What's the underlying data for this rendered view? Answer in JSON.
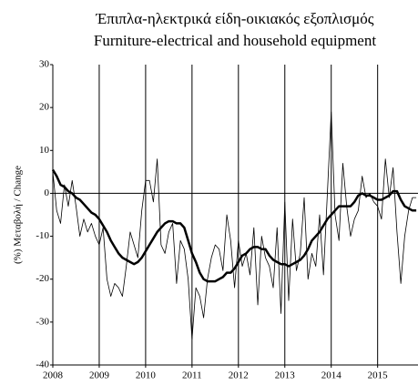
{
  "chart_data": {
    "type": "line",
    "title": "Έπιπλα-ηλεκτρικά είδη-οικιακός εξοπλισμός",
    "subtitle": "Furniture-electrical and household equipment",
    "y_label": "(%) Μεταβολή / Change",
    "x": [
      2008,
      2008.083,
      2008.167,
      2008.25,
      2008.333,
      2008.417,
      2008.5,
      2008.583,
      2008.667,
      2008.75,
      2008.833,
      2008.917,
      2009,
      2009.083,
      2009.167,
      2009.25,
      2009.333,
      2009.417,
      2009.5,
      2009.583,
      2009.667,
      2009.75,
      2009.833,
      2009.917,
      2010,
      2010.083,
      2010.167,
      2010.25,
      2010.333,
      2010.417,
      2010.5,
      2010.583,
      2010.667,
      2010.75,
      2010.833,
      2010.917,
      2011,
      2011.083,
      2011.167,
      2011.25,
      2011.333,
      2011.417,
      2011.5,
      2011.583,
      2011.667,
      2011.75,
      2011.833,
      2011.917,
      2012,
      2012.083,
      2012.167,
      2012.25,
      2012.333,
      2012.417,
      2012.5,
      2012.583,
      2012.667,
      2012.75,
      2012.833,
      2012.917,
      2013,
      2013.083,
      2013.167,
      2013.25,
      2013.333,
      2013.417,
      2013.5,
      2013.583,
      2013.667,
      2013.75,
      2013.833,
      2013.917,
      2014,
      2014.083,
      2014.167,
      2014.25,
      2014.333,
      2014.417,
      2014.5,
      2014.583,
      2014.667,
      2014.75,
      2014.833,
      2014.917,
      2015,
      2015.083,
      2015.167,
      2015.25,
      2015.333,
      2015.417,
      2015.5,
      2015.583,
      2015.667,
      2015.75,
      2015.833
    ],
    "series": [
      {
        "color": "#000000",
        "width": 0.8,
        "values": [
          5,
          -4,
          -7,
          2,
          -3,
          3,
          -3,
          -10,
          -6,
          -9,
          -7,
          -10,
          -12,
          -8,
          -20,
          -24,
          -21,
          -22,
          -24,
          -17,
          -9,
          -12,
          -15,
          -4,
          3,
          3,
          -2,
          8,
          -12,
          -14,
          -9,
          -7,
          -21,
          -11,
          -13,
          -20,
          -34,
          -22,
          -24,
          -29,
          -20,
          -15,
          -12,
          -13,
          -18,
          -5,
          -11,
          -22,
          -11,
          -17,
          -14,
          -19,
          -8,
          -26,
          -10,
          -15,
          -17,
          -22,
          -8,
          -28,
          -2,
          -25,
          -6,
          -18,
          -14,
          -1,
          -20,
          -14,
          -17,
          -5,
          -19,
          0,
          19,
          -5,
          -11,
          7,
          -3,
          -10,
          -6,
          -4,
          4,
          -1,
          0,
          -2,
          -3,
          -6,
          8,
          -1,
          6,
          -9,
          -21,
          -10,
          -4,
          -1,
          -1
        ]
      },
      {
        "color": "#000000",
        "width": 2.5,
        "values": [
          5.5,
          4,
          2,
          1.5,
          0.5,
          0,
          -1,
          -1.5,
          -2.5,
          -3.5,
          -4.5,
          -5,
          -6,
          -7.5,
          -9,
          -11,
          -12.5,
          -14,
          -15,
          -15.5,
          -16,
          -16.5,
          -16,
          -15,
          -13.5,
          -12,
          -10.5,
          -9,
          -8,
          -7,
          -6.5,
          -6.5,
          -7,
          -7,
          -8,
          -11,
          -14,
          -16,
          -18.5,
          -20,
          -20.5,
          -20.5,
          -20.5,
          -20,
          -19.5,
          -18.5,
          -18.5,
          -17.5,
          -16,
          -14.5,
          -14,
          -13,
          -12.5,
          -12.5,
          -13,
          -13,
          -14.5,
          -15.5,
          -16,
          -16.5,
          -16.5,
          -17,
          -16.5,
          -16,
          -15.5,
          -14.5,
          -13,
          -11,
          -10,
          -9,
          -7.5,
          -6,
          -5,
          -4,
          -3,
          -3,
          -3,
          -3,
          -2,
          -0.5,
          0,
          -0.5,
          -0.5,
          -1,
          -1.5,
          -1.5,
          -1,
          -0.5,
          0.5,
          0.5,
          -1.5,
          -3,
          -3.5,
          -4,
          -4
        ]
      }
    ],
    "xlim": [
      2008,
      2015.87
    ],
    "xticks": [
      2008,
      2009,
      2010,
      2011,
      2012,
      2013,
      2014,
      2015
    ],
    "ylim": [
      -40,
      30
    ],
    "yticks": [
      -40,
      -30,
      -20,
      -10,
      0,
      10,
      20,
      30
    ],
    "grid": "x",
    "zero_line": true
  }
}
